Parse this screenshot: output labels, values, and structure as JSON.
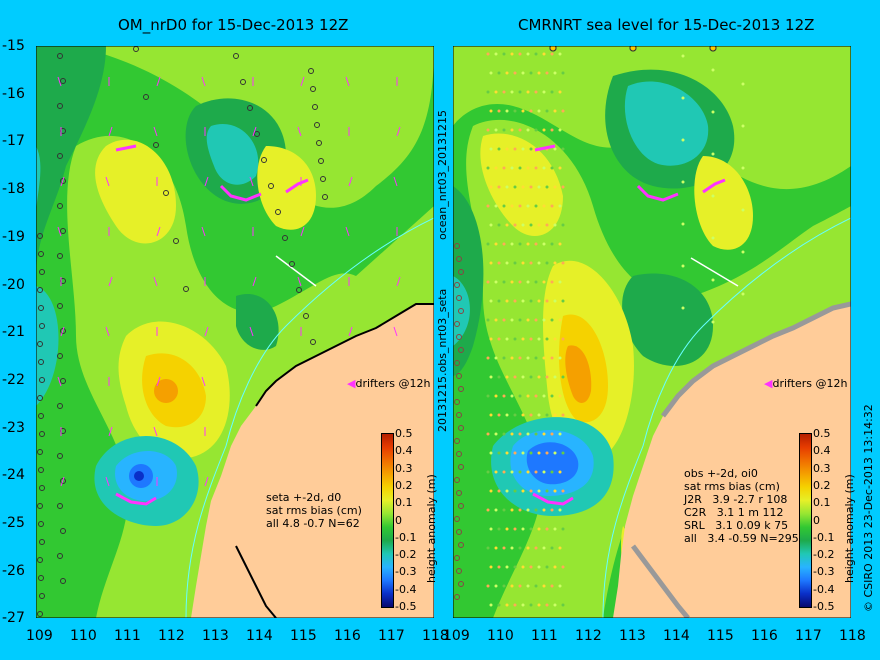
{
  "left_panel": {
    "title": "OM_nrD0 for 15-Dec-2013 12Z",
    "side_label_top": "ocean_nrt03_20131215",
    "side_label_bottom": "20131215.obs_nrt03_seta",
    "drifters_label": "drifters @12h",
    "stats": [
      "seta +-2d, d0",
      "sat rms bias (cm)",
      "all 4.8 -0.7 N=62"
    ]
  },
  "right_panel": {
    "title": "CMRNRT sea level  for 15-Dec-2013 12Z",
    "drifters_label": "drifters @12h",
    "stats": [
      "obs +-2d, oi0",
      "sat rms bias (cm)",
      "J2R   3.9 -2.7 r 108",
      "C2R   3.1 1 m 112",
      "SRL   3.1 0.09 k 75",
      "all   3.4 -0.59 N=295"
    ]
  },
  "y_ticks": [
    "-15",
    "-16",
    "-17",
    "-18",
    "-19",
    "-20",
    "-21",
    "-22",
    "-23",
    "-24",
    "-25",
    "-26",
    "-27"
  ],
  "x_ticks": [
    "109",
    "110",
    "111",
    "112",
    "113",
    "114",
    "115",
    "116",
    "117",
    "118"
  ],
  "colorbar": {
    "ticks": [
      "0.5",
      "0.4",
      "0.3",
      "0.2",
      "0.1",
      "0",
      "-0.1",
      "-0.2",
      "-0.3",
      "-0.4",
      "-0.5"
    ],
    "label": "height anomaly (m)",
    "colors": [
      "#08086e",
      "#0a2fc8",
      "#1e78ff",
      "#28b4ff",
      "#20c8b4",
      "#1eaa4b",
      "#32c832",
      "#96e632",
      "#e6f028",
      "#f5d200",
      "#f5a000",
      "#f06e00",
      "#e63c00",
      "#b41e00"
    ]
  },
  "footer": "© CSIRO 2013    23-Dec-2013 13:14:32",
  "colors": {
    "background": "#00ccff",
    "land": "#ffcc99",
    "drifter": "#ff33ff"
  }
}
